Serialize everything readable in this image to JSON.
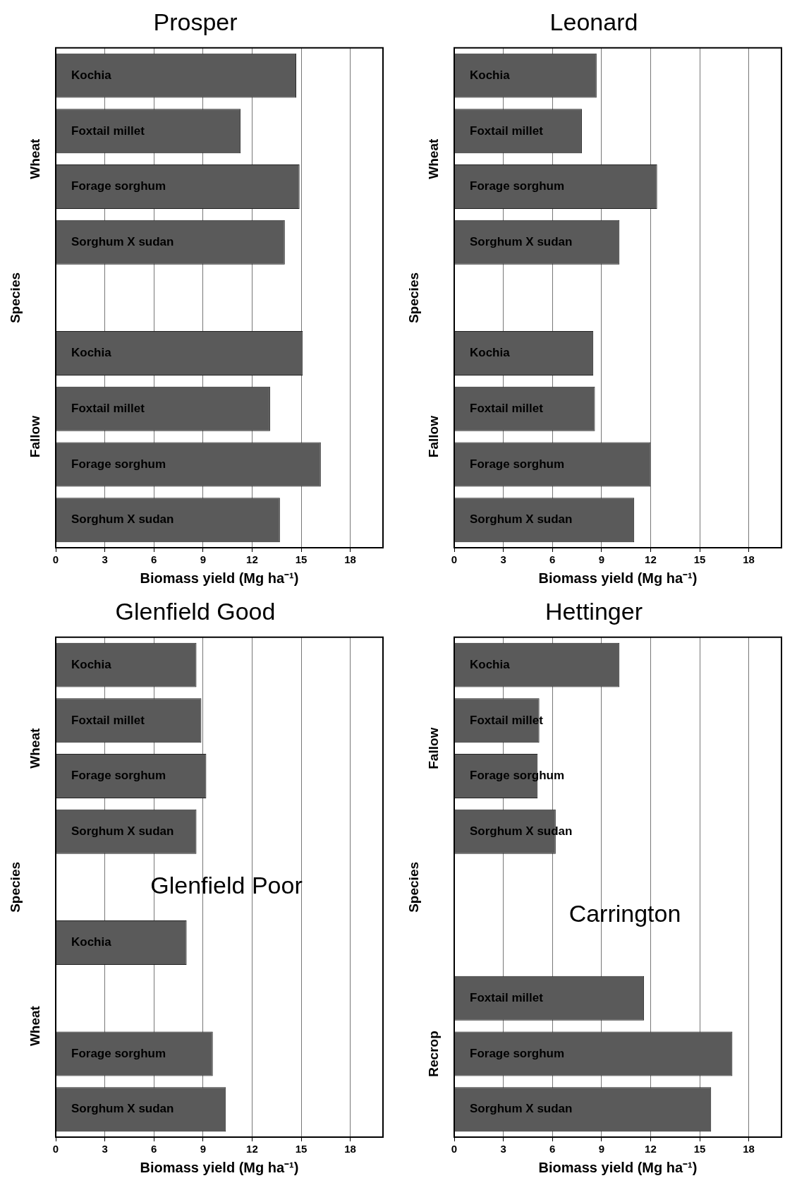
{
  "chart_data": [
    {
      "type": "bar",
      "orientation": "horizontal",
      "title": "Prosper",
      "xlabel": "Biomass yield (Mg ha⁻¹)",
      "ylabel": "Species",
      "categories": [
        "Kochia",
        "Foxtail millet",
        "Forage sorghum",
        "Sorghum X sudan",
        null,
        "Kochia",
        "Foxtail millet",
        "Forage sorghum",
        "Sorghum X sudan"
      ],
      "values": [
        14.7,
        11.3,
        14.9,
        14.0,
        null,
        15.1,
        13.1,
        16.2,
        13.7
      ],
      "color": "#5a5a5a",
      "xlim": [
        0,
        20
      ],
      "xticks": [
        0,
        3,
        6,
        9,
        12,
        15,
        18
      ],
      "grid": "x",
      "annotations": [
        "Wheat",
        "Fallow"
      ]
    },
    {
      "type": "bar",
      "orientation": "horizontal",
      "title": "Leonard",
      "xlabel": "Biomass yield (Mg ha⁻¹)",
      "ylabel": "Species",
      "categories": [
        "Kochia",
        "Foxtail millet",
        "Forage sorghum",
        "Sorghum X sudan",
        null,
        "Kochia",
        "Foxtail millet",
        "Forage sorghum",
        "Sorghum X sudan"
      ],
      "values": [
        8.7,
        7.8,
        12.4,
        10.1,
        null,
        8.5,
        8.6,
        12.0,
        11.0
      ],
      "color": "#5a5a5a",
      "xlim": [
        0,
        20
      ],
      "xticks": [
        0,
        3,
        6,
        9,
        12,
        15,
        18
      ],
      "grid": "x",
      "annotations": [
        "Wheat",
        "Fallow"
      ]
    },
    {
      "type": "bar",
      "orientation": "horizontal",
      "title": "Glenfield Good",
      "subtitle": "Glenfield Poor",
      "xlabel": "Biomass yield (Mg ha⁻¹)",
      "ylabel": "Species",
      "categories": [
        "Kochia",
        "Foxtail millet",
        "Forage sorghum",
        "Sorghum X sudan",
        null,
        "Kochia",
        null,
        "Forage sorghum",
        "Sorghum X sudan"
      ],
      "values": [
        8.6,
        8.9,
        9.2,
        8.6,
        null,
        8.0,
        null,
        9.6,
        10.4
      ],
      "color": "#5a5a5a",
      "xlim": [
        0,
        20
      ],
      "xticks": [
        0,
        3,
        6,
        9,
        12,
        15,
        18
      ],
      "grid": "x",
      "annotations": [
        "Wheat",
        "Wheat"
      ]
    },
    {
      "type": "bar",
      "orientation": "horizontal",
      "title": "Hettinger",
      "subtitle": "Carrington",
      "xlabel": "Biomass yield (Mg ha⁻¹)",
      "ylabel": "Species",
      "categories": [
        "Kochia",
        "Foxtail millet",
        "Forage sorghum",
        "Sorghum X sudan",
        null,
        null,
        "Foxtail millet",
        "Forage sorghum",
        "Sorghum X sudan"
      ],
      "values": [
        10.1,
        5.2,
        5.1,
        6.2,
        null,
        null,
        11.6,
        17.0,
        15.7
      ],
      "color": "#5a5a5a",
      "xlim": [
        0,
        20
      ],
      "xticks": [
        0,
        3,
        6,
        9,
        12,
        15,
        18
      ],
      "grid": "x",
      "annotations": [
        "Fallow",
        "Recrop"
      ]
    }
  ]
}
